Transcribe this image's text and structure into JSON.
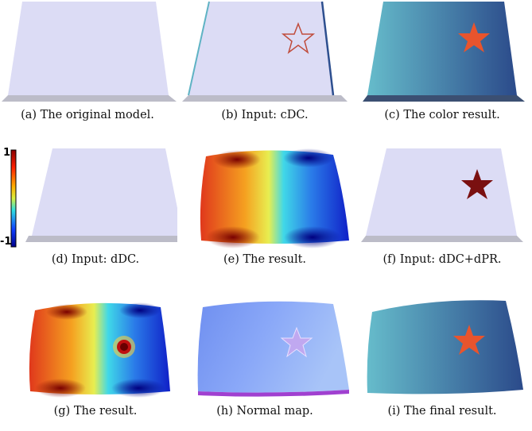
{
  "figure": {
    "colorbar": {
      "max_label": "1",
      "min_label": "-1"
    },
    "panels": [
      {
        "id": "a",
        "caption": "(a) The original model."
      },
      {
        "id": "b",
        "caption": "(b) Input: cDC."
      },
      {
        "id": "c",
        "caption": "(c) The color result."
      },
      {
        "id": "d",
        "caption": "(d) Input: dDC."
      },
      {
        "id": "e",
        "caption": "(e) The result."
      },
      {
        "id": "f",
        "caption": "(f) Input: dDC+dPR."
      },
      {
        "id": "g",
        "caption": "(g) The result."
      },
      {
        "id": "h",
        "caption": "(h) Normal map."
      },
      {
        "id": "i",
        "caption": "(i) The final result."
      }
    ]
  },
  "colors": {
    "plain_top": "#dcdcf5",
    "plain_side": "#b9b9c9",
    "color_left": "#5fb3c4",
    "color_right": "#2d4f8f",
    "star_red": "#e8542d",
    "star_dark": "#7a1010",
    "heat_red": "#d7301f",
    "heat_orange": "#f39b20",
    "heat_yellow": "#e6e84a",
    "heat_cyan": "#3fd0e0",
    "heat_blue": "#1f3fd0"
  }
}
